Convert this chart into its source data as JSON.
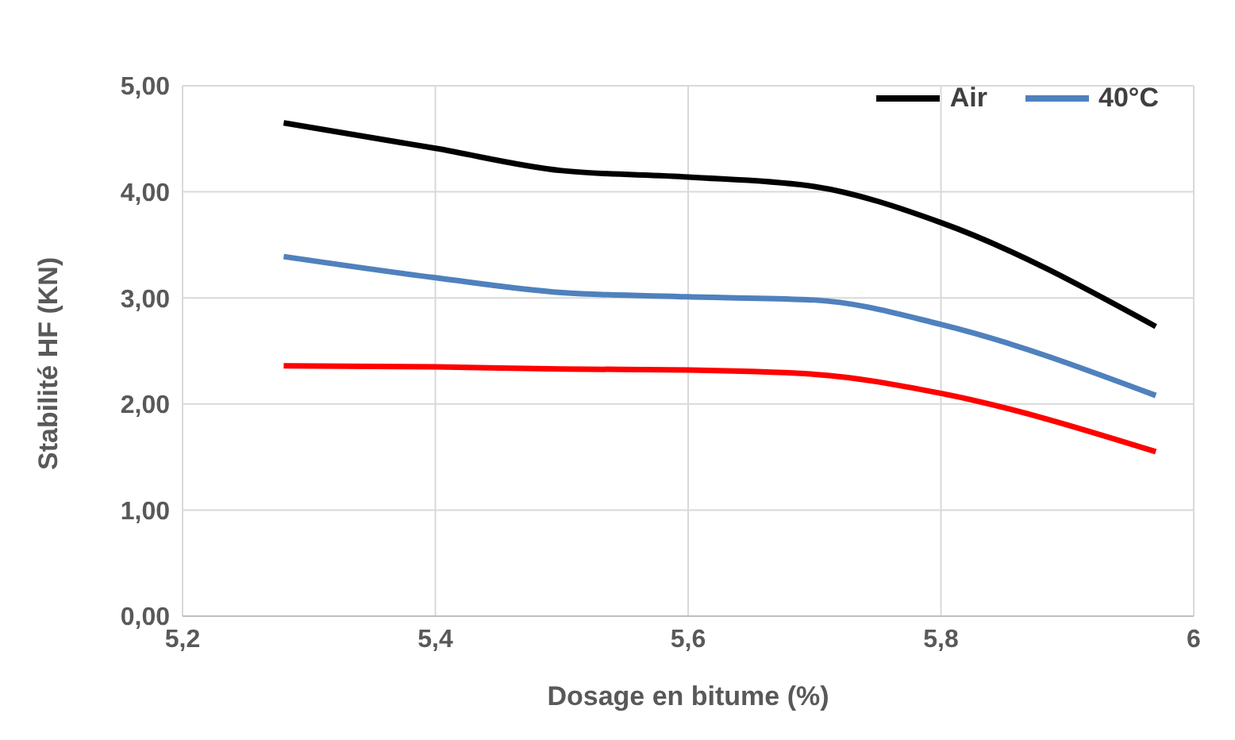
{
  "chart_data": {
    "type": "line",
    "xlabel": "Dosage  en bitume (%)",
    "ylabel": "Stabilité HF (KN)",
    "x": [
      5.28,
      5.4,
      5.5,
      5.6,
      5.7,
      5.8,
      5.97
    ],
    "series": [
      {
        "name": "Air",
        "color": "#000000",
        "values": [
          4.65,
          4.41,
          4.2,
          4.14,
          4.05,
          3.71,
          2.73
        ]
      },
      {
        "name": "40°C",
        "color": "#4f81bd",
        "values": [
          3.39,
          3.19,
          3.05,
          3.01,
          2.98,
          2.75,
          2.08
        ]
      },
      {
        "color": "#ff0000",
        "values": [
          2.36,
          2.35,
          2.33,
          2.32,
          2.28,
          2.1,
          1.55
        ]
      }
    ],
    "xlim": [
      5.2,
      6
    ],
    "xticks": [
      {
        "value": 5.2,
        "label": "5,2"
      },
      {
        "value": 5.4,
        "label": "5,4"
      },
      {
        "value": 5.6,
        "label": "5,6"
      },
      {
        "value": 5.8,
        "label": "5,8"
      },
      {
        "value": 6,
        "label": "6"
      }
    ],
    "ylim": [
      0,
      5
    ],
    "yticks": [
      {
        "value": 0,
        "label": "0,00"
      },
      {
        "value": 1,
        "label": "1,00"
      },
      {
        "value": 2,
        "label": "2,00"
      },
      {
        "value": 3,
        "label": "3,00"
      },
      {
        "value": 4,
        "label": "4,00"
      },
      {
        "value": 5,
        "label": "5,00"
      }
    ],
    "grid": true,
    "legend": "top right",
    "marker": "none",
    "line_style": "solid"
  }
}
